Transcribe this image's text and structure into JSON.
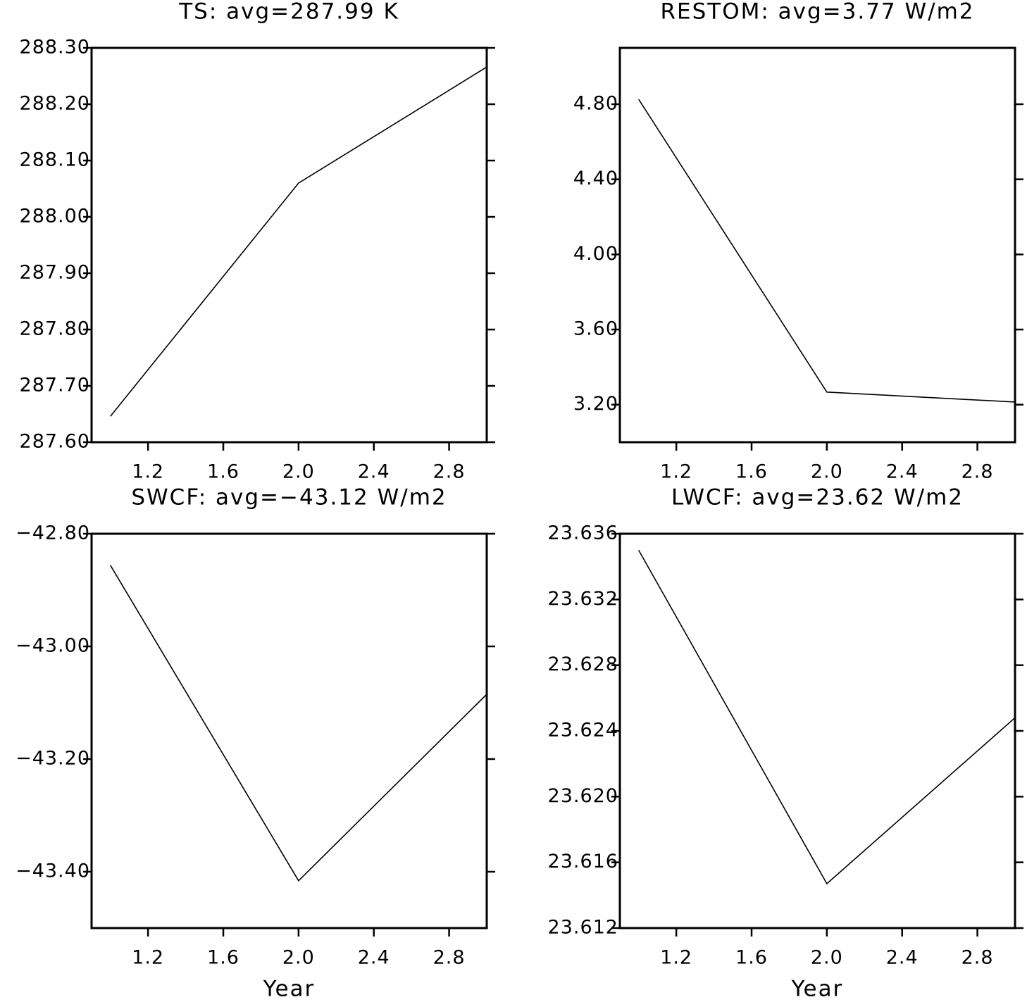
{
  "chart_data": [
    {
      "type": "line",
      "title": "TS: avg=287.99 K",
      "x": [
        1,
        2,
        3
      ],
      "values": [
        287.646,
        288.06,
        288.266
      ],
      "color": "#000000",
      "xlim": [
        0.9,
        3.0
      ],
      "xticks": [
        1.2,
        1.6,
        {
          "value": 2,
          "label": "2.0"
        },
        2.4,
        2.8
      ],
      "ylim": [
        287.6,
        288.3
      ],
      "yticks": [
        {
          "value": 287.6,
          "label": "287.60"
        },
        {
          "value": 287.7,
          "label": "287.70"
        },
        {
          "value": 287.8,
          "label": "287.80"
        },
        {
          "value": 287.9,
          "label": "287.90"
        },
        {
          "value": 288.0,
          "label": "288.00"
        },
        {
          "value": 288.1,
          "label": "288.10"
        },
        {
          "value": 288.2,
          "label": "288.20"
        },
        {
          "value": 288.3,
          "label": "288.30"
        }
      ]
    },
    {
      "type": "line",
      "title": "RESTOM: avg=3.77 W/m2",
      "x": [
        1,
        2,
        3
      ],
      "values": [
        4.826,
        3.267,
        3.214
      ],
      "color": "#000000",
      "xlim": [
        0.9,
        3.0
      ],
      "xticks": [
        1.2,
        1.6,
        {
          "value": 2,
          "label": "2.0"
        },
        2.4,
        2.8
      ],
      "ylim": [
        3.0,
        5.1
      ],
      "yticks": [
        {
          "value": 3.2,
          "label": "3.20"
        },
        {
          "value": 3.6,
          "label": "3.60"
        },
        {
          "value": 4.0,
          "label": "4.00"
        },
        {
          "value": 4.4,
          "label": "4.40"
        },
        {
          "value": 4.8,
          "label": "4.80"
        }
      ]
    },
    {
      "type": "line",
      "title": "SWCF: avg=−43.12 W/m2",
      "x": [
        1,
        2,
        3
      ],
      "values": [
        -42.856,
        -43.416,
        -43.085
      ],
      "color": "#000000",
      "xlabel": "Year",
      "xlim": [
        0.9,
        3.0
      ],
      "xticks": [
        1.2,
        1.6,
        {
          "value": 2,
          "label": "2.0"
        },
        2.4,
        2.8
      ],
      "ylim": [
        -43.5,
        -42.8
      ],
      "yticks": [
        {
          "value": -43.4,
          "label": "−43.40"
        },
        {
          "value": -43.2,
          "label": "−43.20"
        },
        {
          "value": -43.0,
          "label": "−43.00"
        },
        {
          "value": -42.8,
          "label": "−42.80"
        }
      ]
    },
    {
      "type": "line",
      "title": "LWCF: avg=23.62 W/m2",
      "x": [
        1,
        2,
        3
      ],
      "values": [
        23.635,
        23.6147,
        23.6248
      ],
      "color": "#000000",
      "xlabel": "Year",
      "xlim": [
        0.9,
        3.0
      ],
      "xticks": [
        1.2,
        1.6,
        {
          "value": 2,
          "label": "2.0"
        },
        2.4,
        2.8
      ],
      "ylim": [
        23.612,
        23.636
      ],
      "yticks": [
        23.612,
        23.616,
        {
          "value": 23.62,
          "label": "23.620"
        },
        23.624,
        23.628,
        23.632,
        23.636
      ]
    }
  ]
}
